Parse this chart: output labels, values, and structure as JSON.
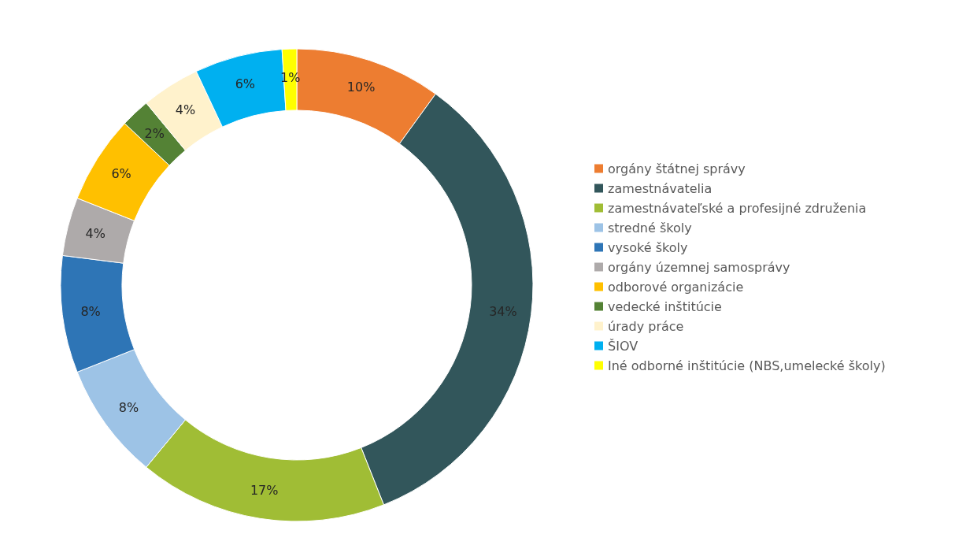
{
  "chart_data": {
    "type": "donut",
    "categories": [
      "orgány štátnej správy",
      "zamestnávatelia",
      "zamestnávateľské a profesijné združenia",
      "stredné školy",
      "vysoké školy",
      "orgány územnej samosprávy",
      "odborové organizácie",
      "vedecké inštitúcie",
      "úrady práce",
      "ŠIOV",
      "Iné odborné inštitúcie (NBS,umelecké školy)"
    ],
    "values": [
      10,
      34,
      17,
      8,
      8,
      4,
      6,
      2,
      4,
      6,
      1
    ],
    "value_labels": [
      "10%",
      "34%",
      "17%",
      "8%",
      "8%",
      "4%",
      "6%",
      "2%",
      "4%",
      "6%",
      "1%"
    ],
    "colors": [
      "#ed7d31",
      "#32565b",
      "#a0bd35",
      "#9dc3e6",
      "#2e75b6",
      "#aeaaaa",
      "#ffc000",
      "#548235",
      "#fff2cc",
      "#00b0f0",
      "#ffff00"
    ],
    "legend": "right"
  }
}
